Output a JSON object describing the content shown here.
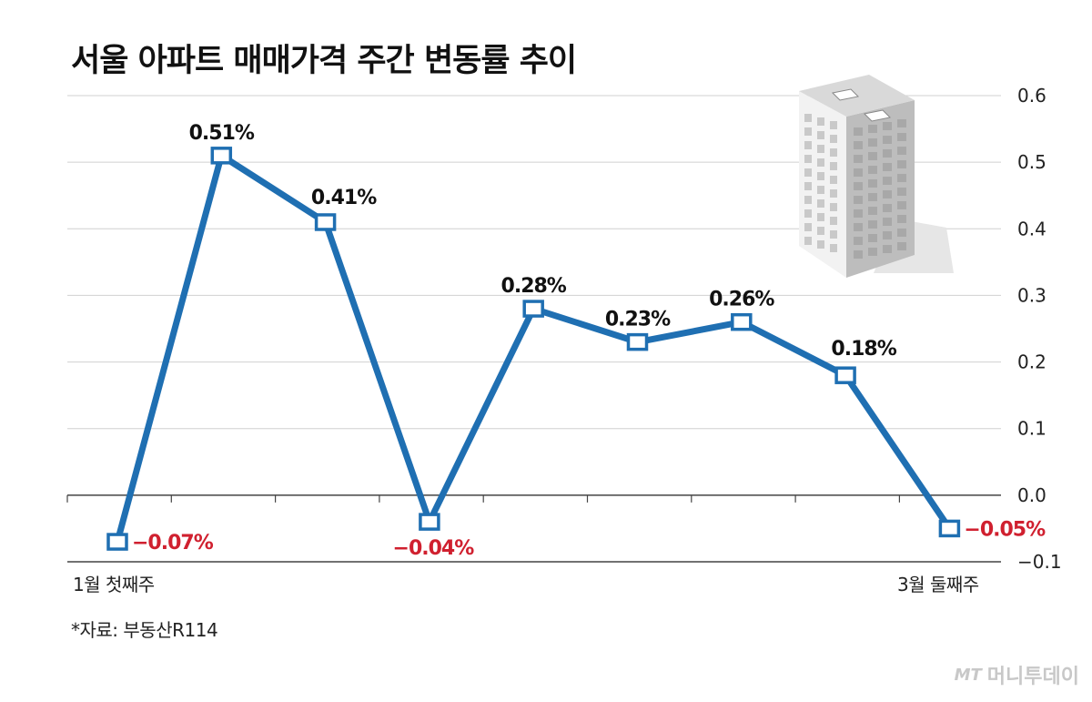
{
  "chart_data": {
    "type": "line",
    "title": "서울 아파트 매매가격 주간 변동률 추이",
    "x": [
      "1",
      "2",
      "3",
      "4",
      "5",
      "6",
      "7",
      "8",
      "9"
    ],
    "x_tick_labels": {
      "first": "1월 첫째주",
      "last": "3월 둘째주"
    },
    "series": [
      {
        "values": [
          -0.07,
          0.51,
          0.41,
          -0.04,
          0.28,
          0.23,
          0.26,
          0.18,
          -0.05
        ],
        "labels": [
          "−0.07%",
          "0.51%",
          "0.41%",
          "−0.04%",
          "0.28%",
          "0.23%",
          "0.26%",
          "0.18%",
          "−0.05%"
        ]
      }
    ],
    "yticks": [
      "0.6",
      "0.5",
      "0.4",
      "0.3",
      "0.2",
      "0.1",
      "0.0",
      "−0.1"
    ],
    "ylim": [
      -0.1,
      0.6
    ],
    "grid": true,
    "y_axis_side": "right"
  },
  "source_note": "*자료: 부동산R114",
  "brand": {
    "mark": "MT",
    "name": "머니투데이"
  },
  "colors": {
    "line": "#1f6fb2",
    "positive_label": "#111111",
    "negative_label": "#d0202f",
    "grid": "#d0d0d0",
    "axis": "#444444"
  },
  "icons": {
    "illustration": "apartment-building-icon",
    "brand_mark": "moneytoday-logo-icon"
  }
}
